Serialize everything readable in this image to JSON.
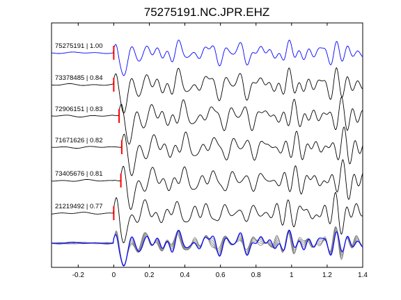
{
  "chart_data": {
    "type": "line",
    "title": "75275191.NC.JPR.EHZ",
    "xlabel": "",
    "ylabel": "",
    "xlim": [
      -0.35,
      1.4
    ],
    "x_ticks": [
      "-0.2",
      "0",
      "0.2",
      "0.4",
      "0.6",
      "0.8",
      "1",
      "1.2",
      "1.4"
    ],
    "x_tick_values": [
      -0.2,
      0,
      0.2,
      0.4,
      0.6,
      0.8,
      1.0,
      1.2,
      1.4
    ],
    "grid": false,
    "trace_colors": {
      "reference": "#0000ff",
      "match": "#000000",
      "pick": "#ff0000",
      "stack": "#808080"
    },
    "series": [
      {
        "label": "75275191 | 1.00",
        "pick_time": 0.0,
        "reference": true
      },
      {
        "label": "73378485 | 0.84",
        "pick_time": 0.0,
        "reference": false
      },
      {
        "label": "72906151 | 0.83",
        "pick_time": 0.03,
        "reference": false
      },
      {
        "label": "71671626 | 0.82",
        "pick_time": 0.045,
        "reference": false
      },
      {
        "label": "73405676 | 0.81",
        "pick_time": 0.04,
        "reference": false
      },
      {
        "label": "21219492 | 0.77",
        "pick_time": 0.0,
        "reference": false
      }
    ],
    "stack": {
      "count": 6,
      "aligned_at": 0.0
    }
  }
}
